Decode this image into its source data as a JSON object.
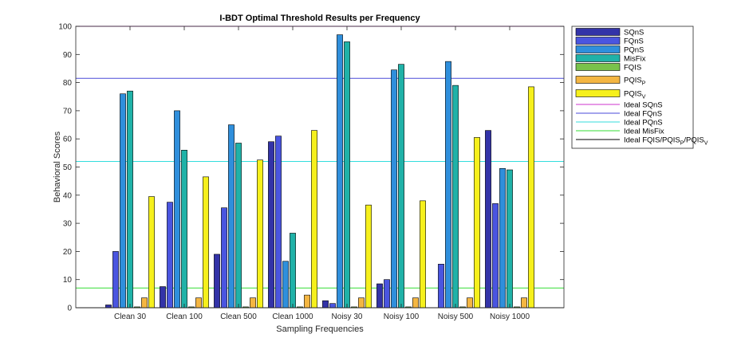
{
  "chart_data": {
    "type": "bar",
    "title": "I-BDT Optimal Threshold Results per Frequency",
    "xlabel": "Sampling Frequencies",
    "ylabel": "Behavioral Scores",
    "ylim": [
      0,
      100
    ],
    "yticks": [
      0,
      10,
      20,
      30,
      40,
      50,
      60,
      70,
      80,
      90,
      100
    ],
    "categories": [
      "Clean 30",
      "Clean 100",
      "Clean 500",
      "Clean 1000",
      "Noisy 30",
      "Noisy 100",
      "Noisy 500",
      "Noisy 1000"
    ],
    "series": [
      {
        "name": "SQnS",
        "label": "SQnS",
        "color": "#3333a8",
        "values": [
          1.0,
          7.5,
          19.0,
          59.0,
          2.5,
          8.5,
          0.0,
          63.0
        ]
      },
      {
        "name": "FQnS",
        "label": "FQnS",
        "color": "#4a55e0",
        "values": [
          20.0,
          37.5,
          35.5,
          61.0,
          1.5,
          10.0,
          15.5,
          37.0
        ]
      },
      {
        "name": "PQnS",
        "label": "PQnS",
        "color": "#2f8fdc",
        "values": [
          76.0,
          70.0,
          65.0,
          16.5,
          97.0,
          84.5,
          87.5,
          49.5
        ]
      },
      {
        "name": "MisFix",
        "label": "MisFix",
        "color": "#20b2a8",
        "values": [
          77.0,
          56.0,
          58.5,
          26.5,
          94.5,
          86.5,
          79.0,
          49.0
        ]
      },
      {
        "name": "FQIS",
        "label": "FQIS",
        "color": "#79c24b",
        "values": [
          0.3,
          0.3,
          0.3,
          0.3,
          0.3,
          0.3,
          0.3,
          0.3
        ]
      },
      {
        "name": "PQIS_P",
        "label": "PQIS",
        "sub": "P",
        "color": "#f4b642",
        "values": [
          3.5,
          3.5,
          3.5,
          4.5,
          3.5,
          3.5,
          3.5,
          3.5
        ]
      },
      {
        "name": "PQIS_V",
        "label": "PQIS",
        "sub": "V",
        "color": "#f6f01c",
        "values": [
          39.5,
          46.5,
          52.5,
          63.0,
          36.5,
          38.0,
          60.5,
          78.5
        ]
      }
    ],
    "reference_lines": [
      {
        "name": "Ideal SQnS",
        "label": "Ideal SQnS",
        "color": "#cc33cc",
        "value": 100
      },
      {
        "name": "Ideal FQnS",
        "label": "Ideal FQnS",
        "color": "#4a4ad8",
        "value": 81.5
      },
      {
        "name": "Ideal PQnS",
        "label": "Ideal PQnS",
        "color": "#33dddd",
        "value": 52
      },
      {
        "name": "Ideal MisFix",
        "label": "Ideal MisFix",
        "color": "#33dd33",
        "value": 7
      },
      {
        "name": "Ideal FQIS/PQIS_P/PQIS_V",
        "label": "Ideal FQIS/PQIS",
        "color": "#000000",
        "value": 0
      }
    ],
    "legend_position": "outside-right"
  }
}
